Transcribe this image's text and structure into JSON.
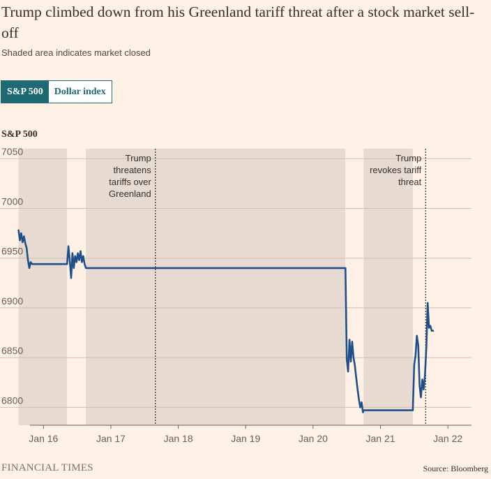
{
  "header": {
    "title": "Trump climbed down from his Greenland tariff threat after a stock market sell-off",
    "subtitle": "Shaded area indicates market closed"
  },
  "toggle": {
    "active_label": "S&P 500",
    "inactive_label": "Dollar index"
  },
  "footer": {
    "brand": "FINANCIAL TIMES",
    "source": "Source: Bloomberg"
  },
  "colors": {
    "background": "#fff1e5",
    "line": "#1f4f8a",
    "shade": "#e7dad0",
    "grid": "#ccc1b7",
    "accent": "#1d6a73"
  },
  "chart_data": {
    "type": "line",
    "title": "S&P 500",
    "ylabel": "S&P 500",
    "xlabel": "",
    "ylim": [
      6782,
      7060
    ],
    "xlim": [
      0,
      6.55
    ],
    "x_unit": "days from Jan 16 00:00",
    "yticks": [
      6800,
      6850,
      6900,
      6950,
      7000,
      7050
    ],
    "xtick_labels": [
      "Jan 16",
      "Jan 17",
      "Jan 18",
      "Jan 19",
      "Jan 20",
      "Jan 21",
      "Jan 22"
    ],
    "xtick_positions": [
      0.2,
      1.2,
      2.2,
      3.2,
      4.2,
      5.2,
      6.2
    ],
    "closed_periods": [
      [
        -0.17,
        0.55
      ],
      [
        0.83,
        4.68
      ],
      [
        4.95,
        5.68
      ]
    ],
    "annotations": [
      {
        "label": "Trump threatens tariffs over Greenland",
        "lines": [
          "Trump",
          "threatens",
          "tariffs over",
          "Greenland"
        ],
        "x": 1.86,
        "anchor": "end"
      },
      {
        "label": "Trump revokes tariff threat",
        "lines": [
          "Trump",
          "revokes tariff",
          "threat"
        ],
        "x": 5.87,
        "anchor": "end"
      }
    ],
    "series": [
      {
        "name": "S&P 500",
        "points": [
          [
            -0.17,
            6978
          ],
          [
            -0.15,
            6968
          ],
          [
            -0.13,
            6975
          ],
          [
            -0.11,
            6966
          ],
          [
            -0.09,
            6972
          ],
          [
            -0.07,
            6965
          ],
          [
            -0.05,
            6960
          ],
          [
            -0.03,
            6948
          ],
          [
            -0.01,
            6940
          ],
          [
            0.01,
            6946
          ],
          [
            0.03,
            6944
          ],
          [
            0.55,
            6944
          ],
          [
            0.57,
            6962
          ],
          [
            0.59,
            6948
          ],
          [
            0.61,
            6930
          ],
          [
            0.63,
            6955
          ],
          [
            0.65,
            6940
          ],
          [
            0.67,
            6952
          ],
          [
            0.69,
            6946
          ],
          [
            0.71,
            6955
          ],
          [
            0.73,
            6948
          ],
          [
            0.75,
            6957
          ],
          [
            0.77,
            6946
          ],
          [
            0.79,
            6952
          ],
          [
            0.81,
            6944
          ],
          [
            0.83,
            6940
          ],
          [
            4.68,
            6940
          ],
          [
            4.7,
            6848
          ],
          [
            4.72,
            6836
          ],
          [
            4.74,
            6868
          ],
          [
            4.76,
            6846
          ],
          [
            4.78,
            6866
          ],
          [
            4.8,
            6850
          ],
          [
            4.82,
            6842
          ],
          [
            4.84,
            6830
          ],
          [
            4.86,
            6818
          ],
          [
            4.88,
            6808
          ],
          [
            4.9,
            6800
          ],
          [
            4.92,
            6805
          ],
          [
            4.94,
            6795
          ],
          [
            4.95,
            6797
          ],
          [
            5.68,
            6797
          ],
          [
            5.7,
            6843
          ],
          [
            5.72,
            6852
          ],
          [
            5.74,
            6872
          ],
          [
            5.76,
            6862
          ],
          [
            5.78,
            6822
          ],
          [
            5.8,
            6810
          ],
          [
            5.82,
            6828
          ],
          [
            5.84,
            6818
          ],
          [
            5.86,
            6832
          ],
          [
            5.88,
            6860
          ],
          [
            5.9,
            6905
          ],
          [
            5.92,
            6880
          ],
          [
            5.94,
            6882
          ],
          [
            5.96,
            6877
          ],
          [
            5.98,
            6877
          ]
        ]
      }
    ]
  }
}
